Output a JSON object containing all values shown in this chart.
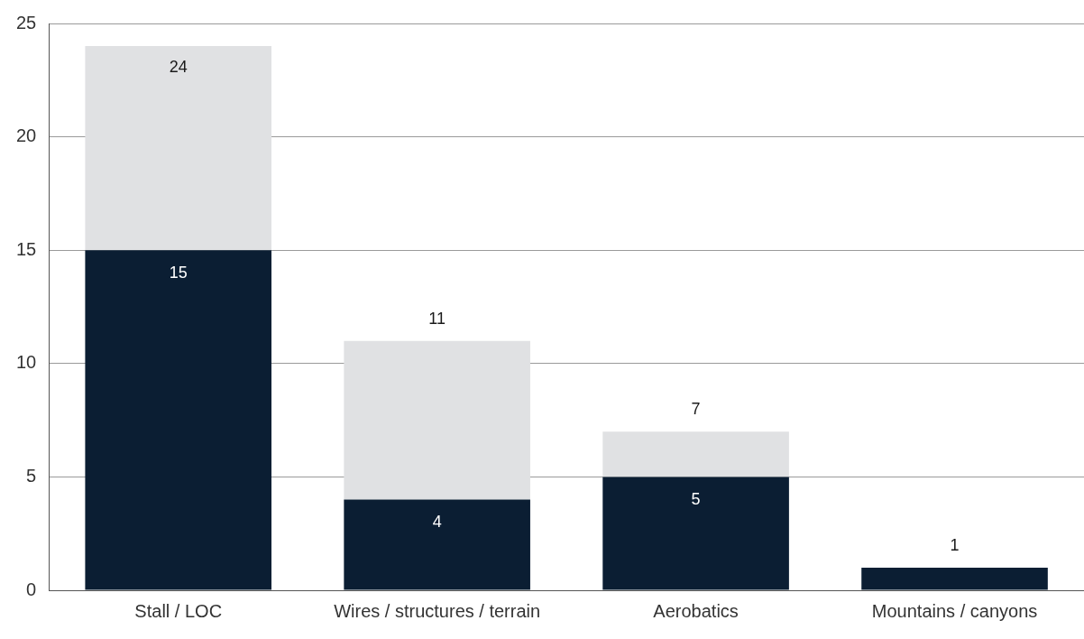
{
  "chart_data": {
    "type": "bar",
    "stacked": true,
    "categories": [
      "Stall / LOC",
      "Wires / structures / terrain",
      "Aerobatics",
      "Mountains / canyons"
    ],
    "series": [
      {
        "color": "#0b1e33",
        "values": [
          15,
          4,
          5,
          1
        ],
        "value_labels": [
          "15",
          "4",
          "5",
          null
        ]
      },
      {
        "color": "#e0e1e3",
        "values": [
          9,
          7,
          2,
          null
        ]
      }
    ],
    "totals": [
      "24",
      "11",
      "7",
      "1"
    ],
    "ylim": [
      0,
      25
    ],
    "yticks": [
      0,
      5,
      10,
      15,
      20,
      25
    ],
    "grid": "y",
    "legend": false
  }
}
